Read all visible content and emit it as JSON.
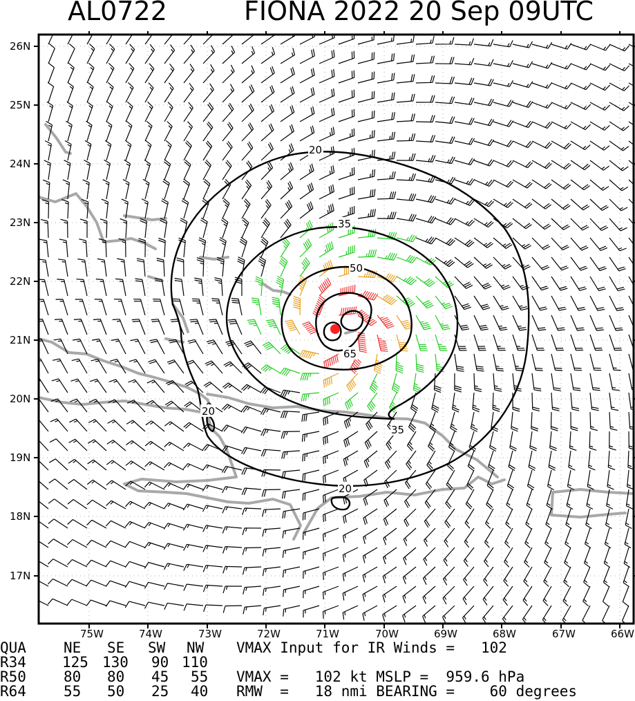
{
  "header": {
    "storm_id": "AL0722",
    "storm_title": "FIONA 2022 20 Sep 09UTC"
  },
  "map": {
    "lat_labels": [
      "26N",
      "25N",
      "24N",
      "23N",
      "22N",
      "21N",
      "20N",
      "19N",
      "18N",
      "17N"
    ],
    "lon_labels": [
      "75W",
      "74W",
      "73W",
      "72W",
      "71W",
      "70W",
      "69W",
      "68W",
      "67W",
      "66W"
    ],
    "contour_labels": {
      "c20_north": "20",
      "c20_west": "20",
      "c20_south": "20",
      "c35_north": "35",
      "c35_south": "35",
      "c50": "50",
      "c65": "65"
    },
    "colors": {
      "wind_below_34": "#000000",
      "wind_34_49": "#22cc22",
      "wind_50_63": "#e8a020",
      "wind_64_plus": "#ee3333",
      "center": "#ff2020",
      "coastline": "#a8a8a8",
      "contour": "#000000"
    }
  },
  "table": {
    "headers": [
      "QUA",
      "NE",
      "SE",
      "SW",
      "NW"
    ],
    "rows": [
      {
        "name": "R34",
        "ne": "125",
        "se": "130",
        "sw": "90",
        "nw": "110"
      },
      {
        "name": "R50",
        "ne": "80",
        "se": "80",
        "sw": "45",
        "nw": "55"
      },
      {
        "name": "R64",
        "ne": "55",
        "se": "50",
        "sw": "25",
        "nw": "40"
      }
    ],
    "vmax_input_line": "VMAX Input for IR Winds =   102",
    "vmax_mslp_line": "VMAX =   102 kt MSLP =  959.6 hPa",
    "rmw_line": "RMW  =   18 nmi BEARING =    60 degrees"
  }
}
